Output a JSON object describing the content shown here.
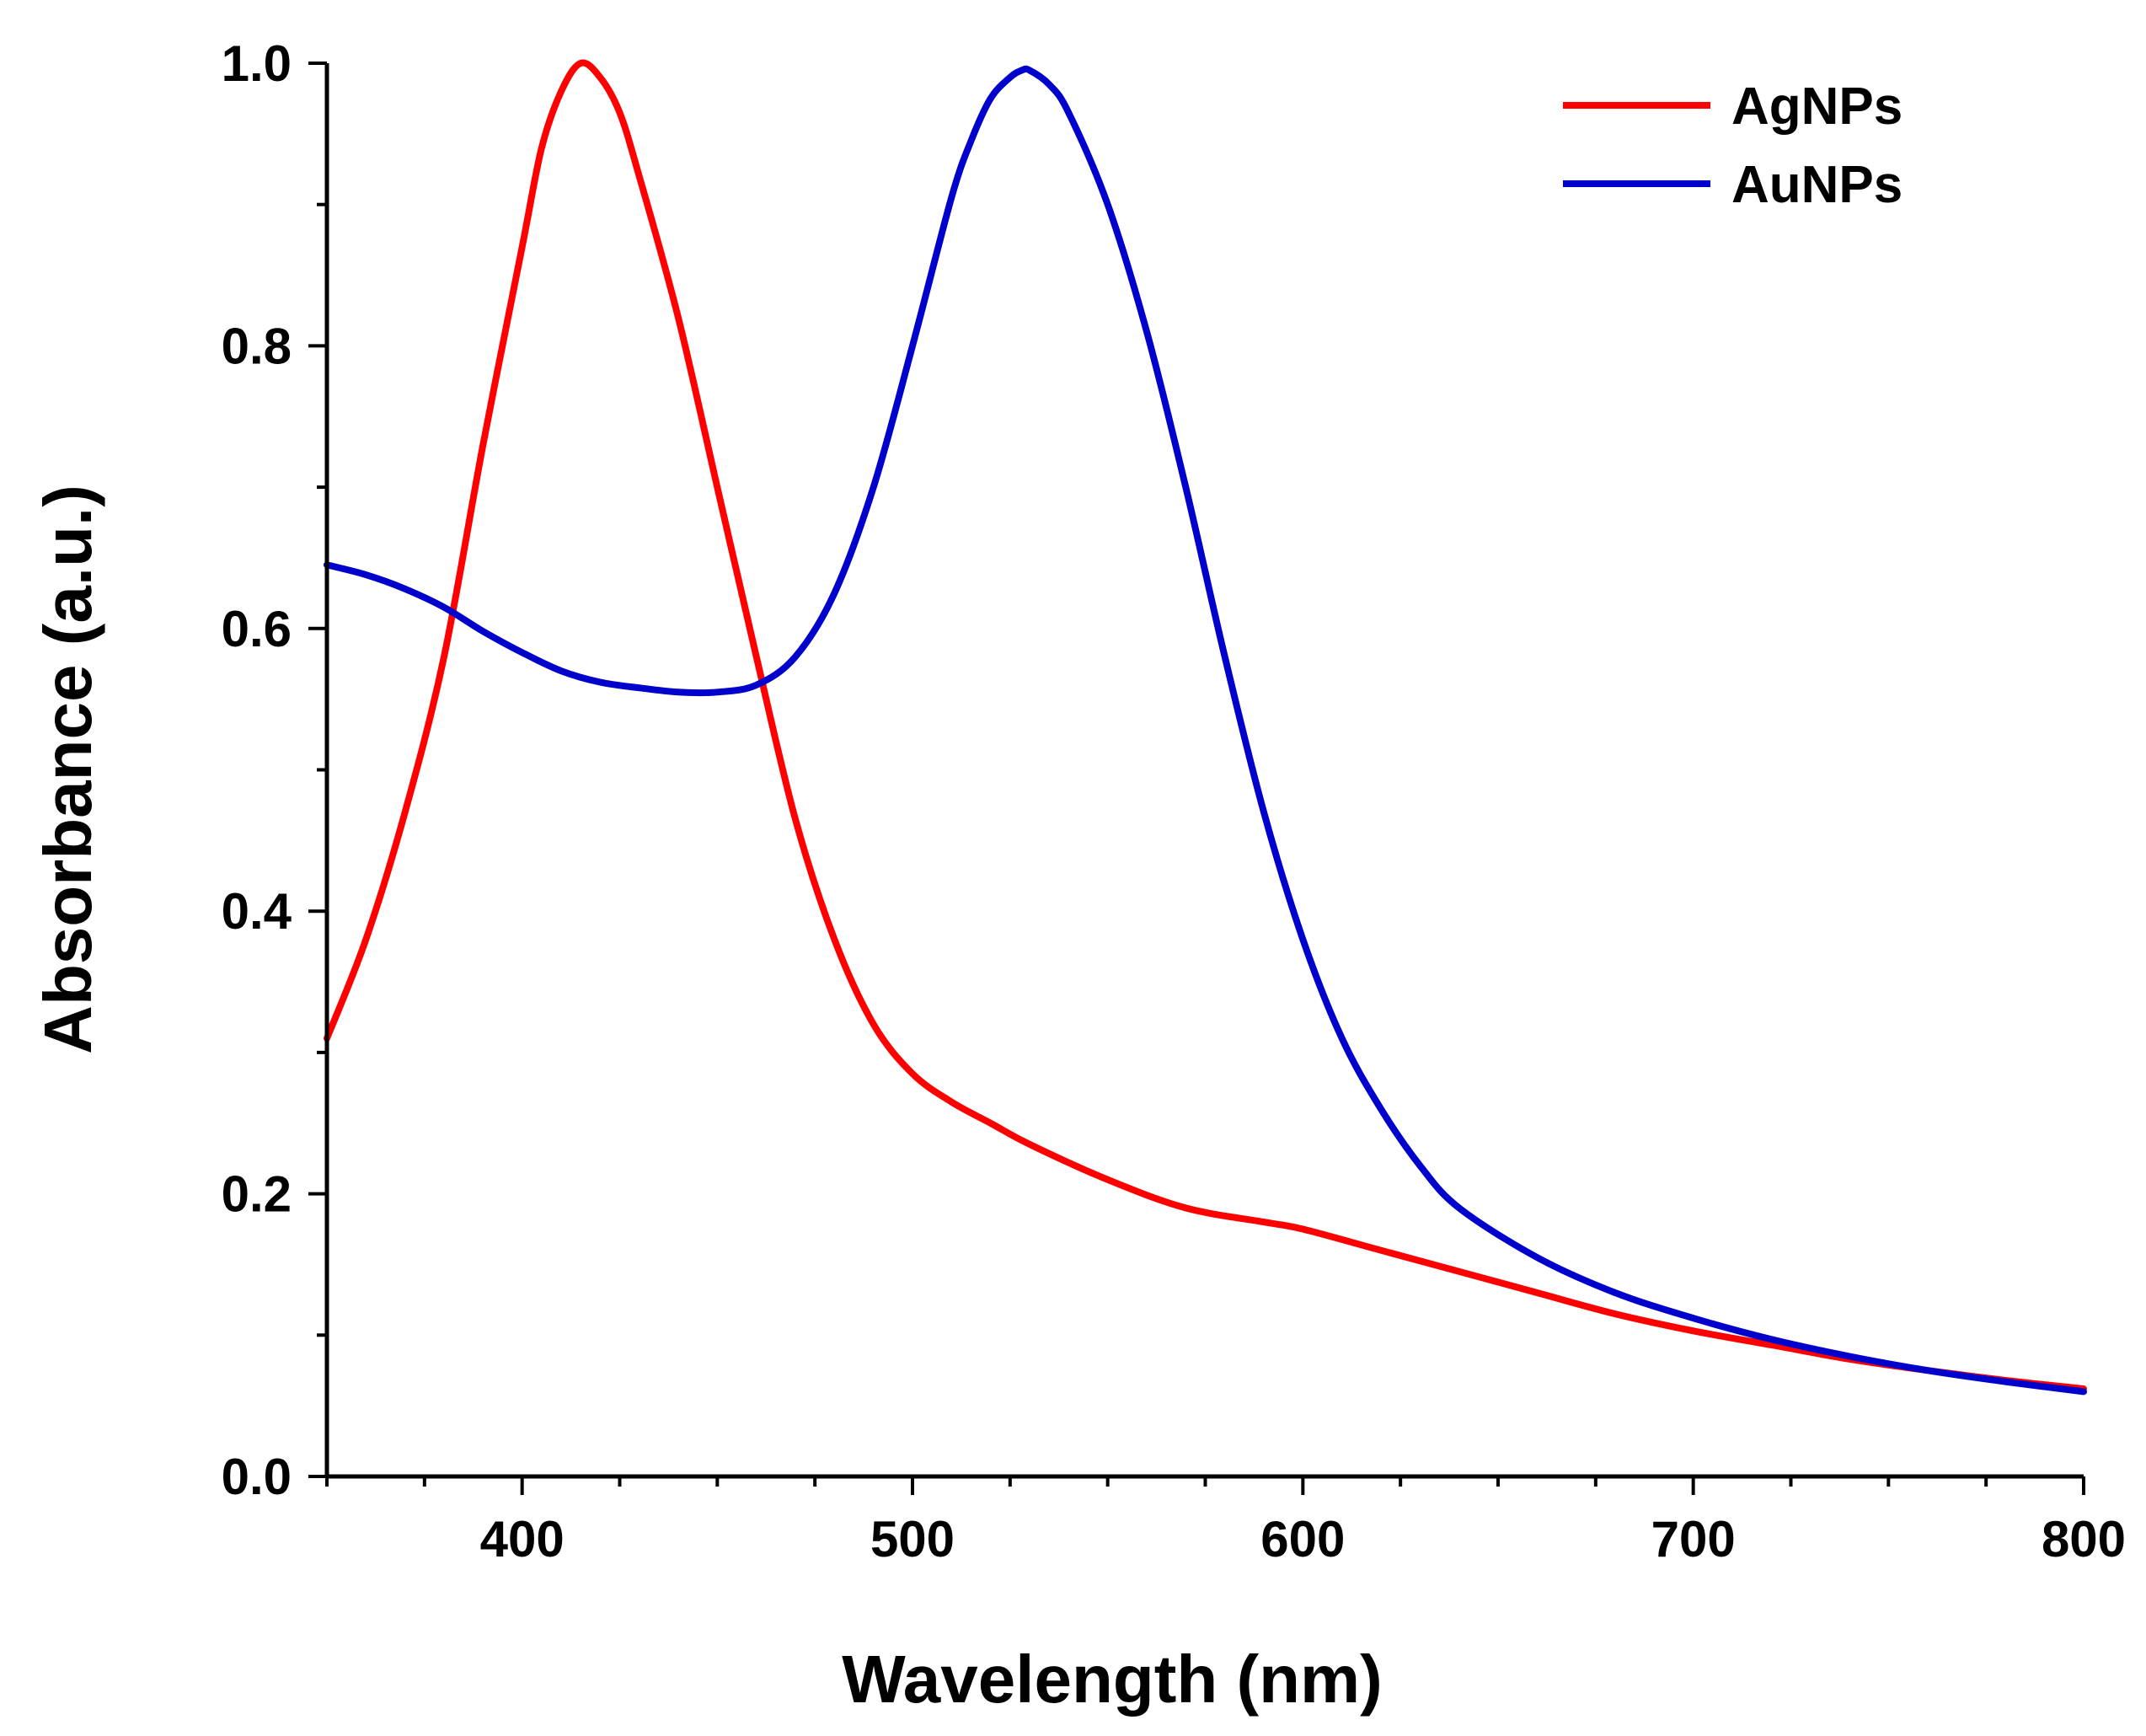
{
  "chart_data": {
    "type": "line",
    "xlabel": "Wavelength (nm)",
    "ylabel": "Absorbance (a.u.)",
    "xlim": [
      350,
      800
    ],
    "ylim": [
      0,
      1.0
    ],
    "x_ticks": [
      400,
      500,
      600,
      700,
      800
    ],
    "x_tick_labels": [
      "400",
      "500",
      "600",
      "700",
      "800"
    ],
    "y_ticks": [
      0.0,
      0.2,
      0.4,
      0.6,
      0.8,
      1.0
    ],
    "y_tick_labels": [
      "0.0",
      "0.2",
      "0.4",
      "0.6",
      "0.8",
      "1.0"
    ],
    "grid": false,
    "legend_position": "top-right",
    "series": [
      {
        "name": "AgNPs",
        "color": "#ff0000",
        "x": [
          350,
          360,
          370,
          380,
          390,
          400,
          405,
          410,
          415,
          420,
          425,
          430,
          440,
          450,
          460,
          470,
          480,
          490,
          500,
          510,
          520,
          530,
          550,
          570,
          590,
          600,
          620,
          640,
          660,
          680,
          700,
          720,
          740,
          760,
          780,
          800
        ],
        "y": [
          0.31,
          0.38,
          0.47,
          0.58,
          0.73,
          0.87,
          0.94,
          0.98,
          1.0,
          0.99,
          0.965,
          0.92,
          0.82,
          0.7,
          0.58,
          0.465,
          0.38,
          0.32,
          0.285,
          0.265,
          0.25,
          0.235,
          0.21,
          0.19,
          0.18,
          0.175,
          0.16,
          0.145,
          0.13,
          0.115,
          0.103,
          0.093,
          0.083,
          0.075,
          0.068,
          0.062
        ]
      },
      {
        "name": "AuNPs",
        "color": "#0000cc",
        "x": [
          350,
          360,
          370,
          380,
          390,
          400,
          410,
          420,
          430,
          440,
          450,
          460,
          470,
          480,
          490,
          500,
          510,
          515,
          520,
          525,
          528,
          530,
          535,
          540,
          550,
          560,
          570,
          580,
          590,
          600,
          610,
          620,
          630,
          640,
          660,
          680,
          700,
          720,
          740,
          760,
          780,
          800
        ],
        "y": [
          0.645,
          0.638,
          0.628,
          0.615,
          0.598,
          0.583,
          0.57,
          0.562,
          0.558,
          0.555,
          0.555,
          0.56,
          0.58,
          0.625,
          0.7,
          0.8,
          0.905,
          0.945,
          0.975,
          0.99,
          0.995,
          0.995,
          0.985,
          0.965,
          0.9,
          0.81,
          0.7,
          0.58,
          0.47,
          0.38,
          0.31,
          0.26,
          0.22,
          0.19,
          0.155,
          0.13,
          0.112,
          0.097,
          0.085,
          0.075,
          0.067,
          0.06
        ]
      }
    ]
  }
}
